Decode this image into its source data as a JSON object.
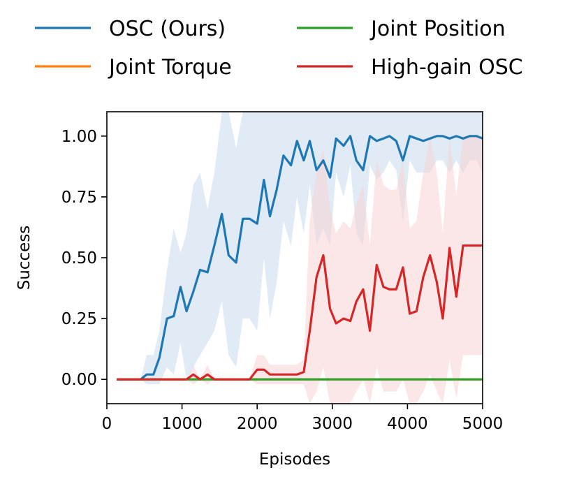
{
  "chart_data": {
    "type": "line",
    "title": "",
    "xlabel": "Episodes",
    "ylabel": "Success",
    "xlim": [
      0,
      5000
    ],
    "ylim": [
      -0.1,
      1.1
    ],
    "xticks": [
      0,
      1000,
      2000,
      3000,
      4000,
      5000
    ],
    "xtick_labels": [
      "0",
      "1000",
      "2000",
      "3000",
      "4000",
      "5000"
    ],
    "yticks": [
      0,
      0.25,
      0.5,
      0.75,
      1.0
    ],
    "ytick_labels": [
      "0.00",
      "0.25",
      "0.50",
      "0.75",
      "1.00"
    ],
    "grid": false,
    "legend_position": "top (above plot), 2 columns",
    "series": [
      {
        "name": "OSC (Ours)",
        "color": "#1f77b4",
        "band_color": "#c6dbef",
        "x": [
          130,
          450,
          530,
          620,
          700,
          800,
          890,
          980,
          1060,
          1150,
          1240,
          1340,
          1430,
          1530,
          1620,
          1720,
          1810,
          1900,
          2000,
          2090,
          2170,
          2260,
          2350,
          2450,
          2530,
          2620,
          2700,
          2790,
          2880,
          2970,
          3050,
          3150,
          3240,
          3320,
          3410,
          3500,
          3590,
          3680,
          3760,
          3850,
          3940,
          4030,
          4120,
          4210,
          4300,
          4390,
          4470,
          4560,
          4650,
          4740,
          4830,
          4920,
          5000
        ],
        "values": [
          0,
          0,
          0.02,
          0.02,
          0.09,
          0.25,
          0.26,
          0.38,
          0.28,
          0.36,
          0.45,
          0.44,
          0.55,
          0.68,
          0.51,
          0.48,
          0.66,
          0.66,
          0.64,
          0.82,
          0.67,
          0.78,
          0.92,
          0.88,
          0.98,
          0.9,
          0.98,
          0.86,
          0.9,
          0.83,
          0.99,
          0.96,
          1.0,
          0.9,
          0.86,
          1.0,
          0.98,
          0.99,
          1.0,
          0.98,
          0.9,
          1.0,
          0.99,
          0.98,
          0.99,
          1.0,
          1.0,
          0.99,
          1.0,
          0.99,
          1.0,
          1.0,
          0.99
        ],
        "upper": [
          0,
          0,
          0.1,
          0.1,
          0.2,
          0.45,
          0.62,
          0.52,
          0.6,
          0.8,
          0.85,
          0.7,
          0.85,
          1.1,
          1.1,
          0.95,
          1.1,
          1.1,
          1.1,
          1.1,
          1.1,
          1.1,
          1.1,
          1.1,
          1.1,
          1.1,
          1.1,
          1.1,
          1.1,
          1.1,
          1.1,
          1.1,
          1.1,
          1.1,
          1.1,
          1.1,
          1.1,
          1.1,
          1.1,
          1.1,
          1.1,
          1.1,
          1.1,
          1.1,
          1.1,
          1.1,
          1.1,
          1.1,
          1.1,
          1.1,
          1.1,
          1.1,
          1.1
        ],
        "lower": [
          0,
          0,
          -0.02,
          -0.02,
          -0.02,
          0.05,
          0.02,
          0.15,
          0.0,
          0.05,
          0.1,
          0.15,
          0.2,
          0.32,
          0.1,
          0.05,
          0.25,
          0.25,
          0.2,
          0.5,
          0.25,
          0.4,
          0.65,
          0.55,
          0.75,
          0.6,
          0.8,
          0.55,
          0.62,
          0.55,
          0.85,
          0.75,
          0.88,
          0.6,
          0.55,
          0.88,
          0.82,
          0.85,
          0.9,
          0.86,
          0.65,
          0.9,
          0.85,
          0.85,
          0.85,
          0.9,
          0.9,
          0.85,
          0.9,
          0.85,
          0.9,
          0.9,
          0.85
        ]
      },
      {
        "name": "Joint Torque",
        "color": "#ff7f0e",
        "x": [
          130,
          5000
        ],
        "values": [
          0,
          0
        ]
      },
      {
        "name": "Joint Position",
        "color": "#2ca02c",
        "x": [
          130,
          5000
        ],
        "values": [
          0,
          0
        ]
      },
      {
        "name": "High-gain OSC",
        "color": "#d62728",
        "band_color": "#f7d4d4",
        "x": [
          130,
          450,
          620,
          800,
          980,
          1060,
          1150,
          1240,
          1340,
          1430,
          1530,
          1620,
          1720,
          1810,
          1900,
          2000,
          2090,
          2170,
          2260,
          2350,
          2450,
          2530,
          2620,
          2700,
          2790,
          2880,
          2970,
          3050,
          3150,
          3240,
          3320,
          3410,
          3500,
          3590,
          3680,
          3760,
          3850,
          3940,
          4030,
          4120,
          4210,
          4300,
          4390,
          4470,
          4560,
          4650,
          4740,
          4830,
          4920,
          5000
        ],
        "values": [
          0,
          0,
          0,
          0,
          0,
          0,
          0.02,
          0,
          0.02,
          0,
          0,
          0,
          0,
          0,
          0,
          0.04,
          0.04,
          0.02,
          0.02,
          0.02,
          0.02,
          0.02,
          0.03,
          0.2,
          0.42,
          0.51,
          0.29,
          0.23,
          0.25,
          0.24,
          0.32,
          0.37,
          0.2,
          0.47,
          0.38,
          0.37,
          0.37,
          0.46,
          0.27,
          0.28,
          0.42,
          0.51,
          0.4,
          0.25,
          0.54,
          0.34,
          0.55,
          0.55,
          0.55,
          0.55
        ],
        "upper": [
          0,
          0,
          0,
          0,
          0,
          0,
          0.06,
          0,
          0.06,
          0,
          0,
          0,
          0,
          0,
          0,
          0.1,
          0.1,
          0.06,
          0.06,
          0.06,
          0.06,
          0.06,
          0.08,
          0.65,
          0.85,
          0.95,
          0.7,
          0.6,
          0.65,
          0.62,
          0.72,
          0.8,
          0.55,
          0.9,
          0.8,
          0.78,
          0.78,
          0.9,
          0.62,
          0.65,
          0.85,
          1.0,
          0.85,
          0.6,
          1.0,
          0.75,
          1.0,
          1.0,
          1.0,
          1.0
        ],
        "lower": [
          0,
          0,
          0,
          0,
          0,
          0,
          -0.02,
          0,
          -0.02,
          0,
          0,
          0,
          0,
          0,
          0,
          -0.02,
          -0.02,
          -0.02,
          -0.02,
          -0.02,
          -0.02,
          -0.02,
          -0.02,
          -0.1,
          -0.05,
          0.05,
          -0.1,
          -0.1,
          -0.1,
          -0.1,
          -0.05,
          0.0,
          -0.1,
          0.05,
          -0.05,
          -0.05,
          -0.05,
          0.0,
          -0.1,
          -0.1,
          -0.05,
          0.02,
          -0.05,
          -0.1,
          0.08,
          -0.08,
          0.1,
          0.1,
          0.1,
          0.1
        ]
      }
    ]
  }
}
